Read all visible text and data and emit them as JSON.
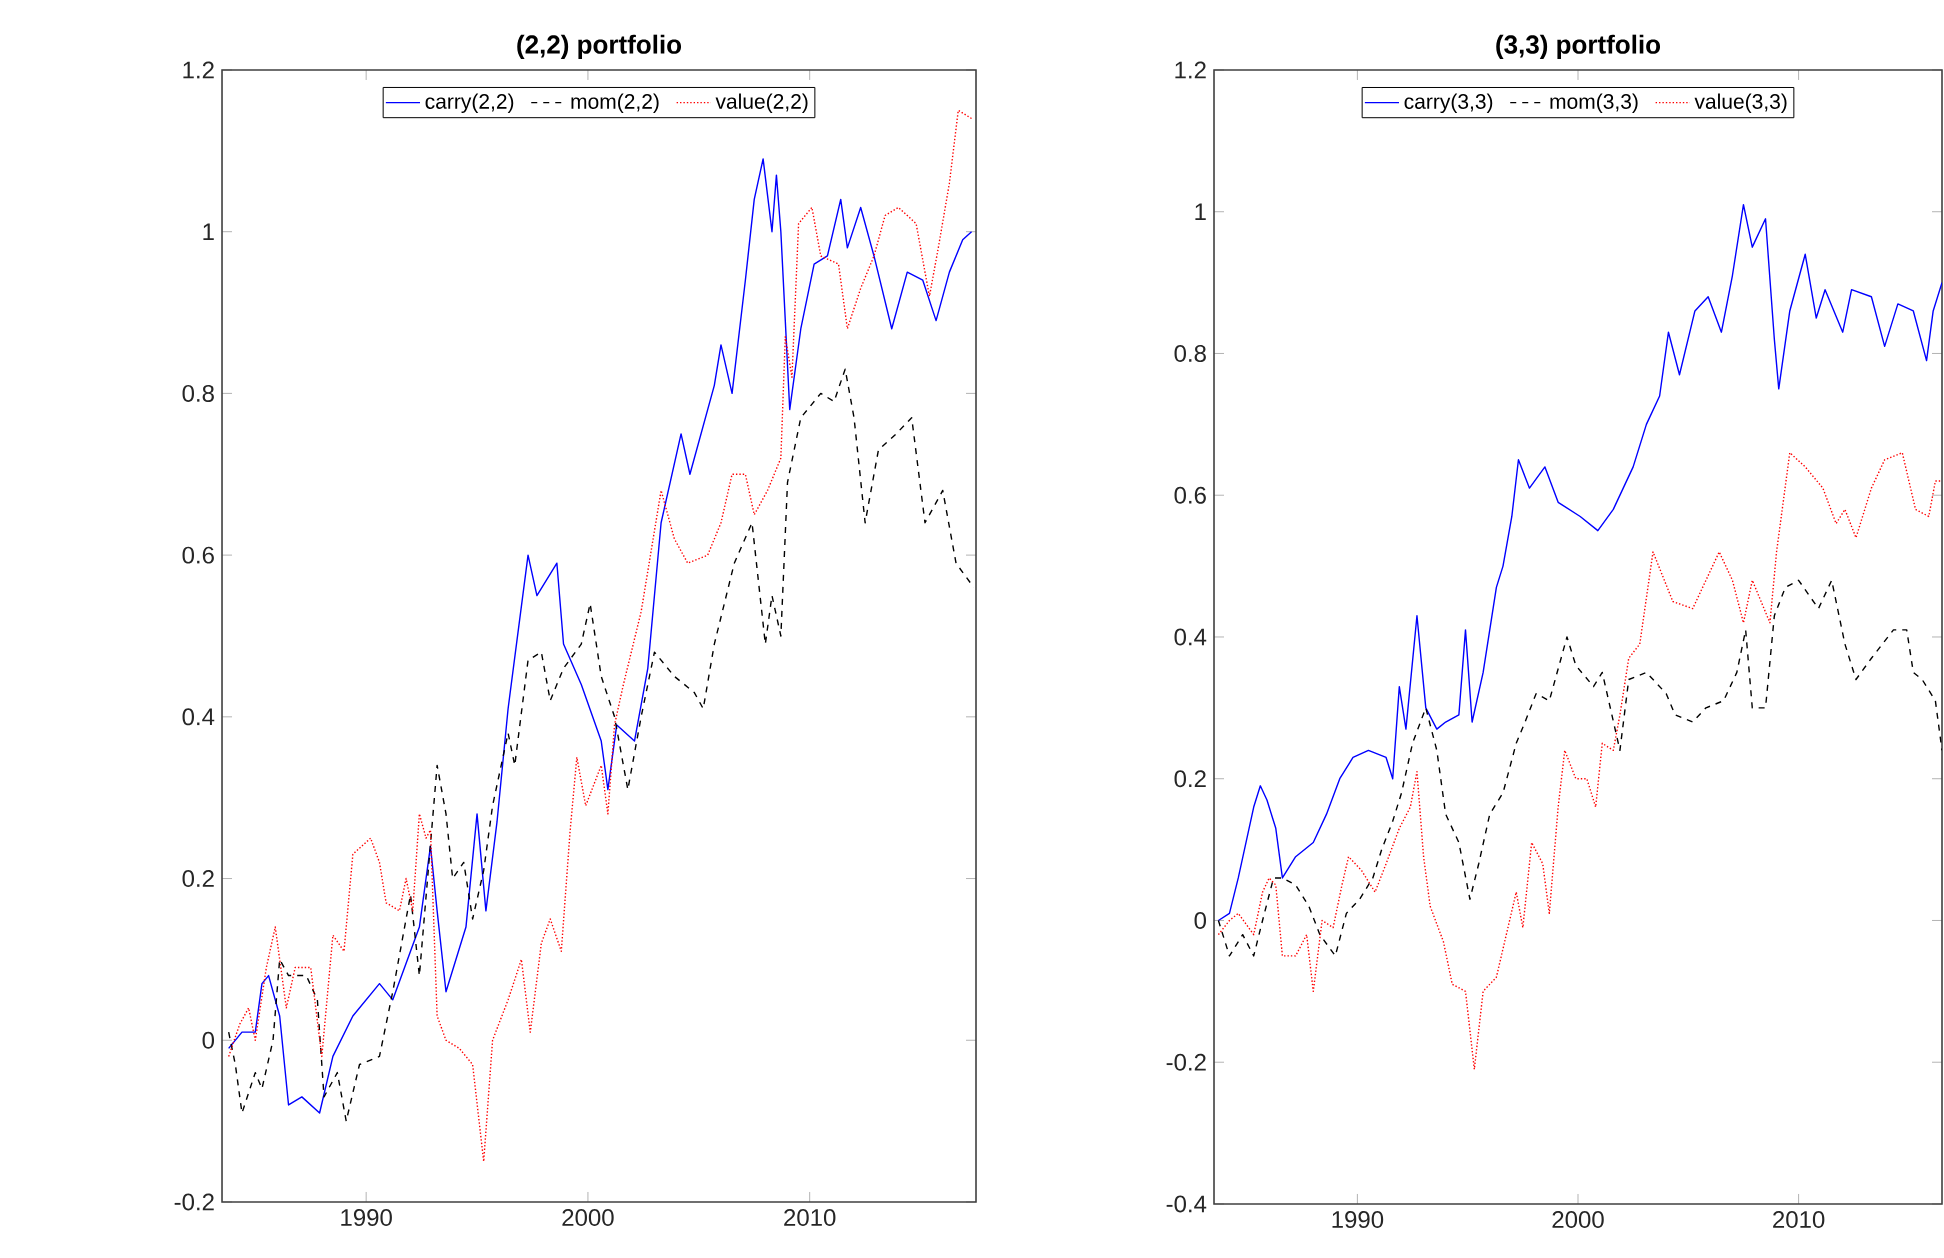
{
  "chart_data": [
    {
      "type": "line",
      "title": "(2,2) portfolio",
      "legend": "top",
      "xlim": [
        1983.5,
        2017.5
      ],
      "ylim": [
        -0.2,
        1.2
      ],
      "xticks": [
        1990,
        2000,
        2010
      ],
      "yticks": [
        -0.2,
        0,
        0.2,
        0.4,
        0.6,
        0.8,
        1,
        1.2
      ],
      "series": [
        {
          "name": "carry(2,2)",
          "color": "#0000ff",
          "line_style": "solid",
          "x": [
            1983.8,
            1984.4,
            1985.0,
            1985.3,
            1985.6,
            1986.1,
            1986.5,
            1987.1,
            1987.9,
            1988.5,
            1989.4,
            1990.6,
            1991.2,
            1992.0,
            1992.4,
            1992.9,
            1993.2,
            1993.6,
            1994.5,
            1995.0,
            1995.4,
            1995.9,
            1996.4,
            1997.3,
            1997.7,
            1998.6,
            1998.9,
            1999.7,
            2000.6,
            2000.9,
            2001.3,
            2002.1,
            2002.7,
            2003.3,
            2004.2,
            2004.6,
            2005.7,
            2006.0,
            2006.5,
            2007.1,
            2007.5,
            2007.9,
            2008.3,
            2008.5,
            2008.7,
            2009.1,
            2009.6,
            2010.2,
            2010.8,
            2011.4,
            2011.7,
            2012.3,
            2012.9,
            2013.7,
            2014.4,
            2015.1,
            2015.7,
            2016.3,
            2016.9,
            2017.3
          ],
          "values": [
            -0.01,
            0.01,
            0.01,
            0.07,
            0.08,
            0.03,
            -0.08,
            -0.07,
            -0.09,
            -0.02,
            0.03,
            0.07,
            0.05,
            0.11,
            0.14,
            0.24,
            0.16,
            0.06,
            0.14,
            0.28,
            0.16,
            0.27,
            0.41,
            0.6,
            0.55,
            0.59,
            0.49,
            0.44,
            0.37,
            0.31,
            0.39,
            0.37,
            0.46,
            0.64,
            0.75,
            0.7,
            0.81,
            0.86,
            0.8,
            0.94,
            1.04,
            1.09,
            1.0,
            1.07,
            1.0,
            0.78,
            0.88,
            0.96,
            0.97,
            1.04,
            0.98,
            1.03,
            0.97,
            0.88,
            0.95,
            0.94,
            0.89,
            0.95,
            0.99,
            1.0
          ]
        },
        {
          "name": "mom(2,2)",
          "color": "#000000",
          "line_style": "dashed",
          "x": [
            1983.8,
            1984.1,
            1984.4,
            1985.0,
            1985.3,
            1985.8,
            1986.1,
            1986.5,
            1987.3,
            1987.8,
            1988.1,
            1988.7,
            1989.1,
            1989.7,
            1990.6,
            1991.2,
            1992.0,
            1992.4,
            1993.2,
            1993.6,
            1993.9,
            1994.4,
            1994.8,
            1995.3,
            1995.7,
            1996.4,
            1996.7,
            1997.3,
            1997.9,
            1998.3,
            1998.9,
            1999.7,
            2000.1,
            2000.6,
            2001.2,
            2001.8,
            2002.4,
            2003.0,
            2003.9,
            2004.8,
            2005.2,
            2005.7,
            2006.6,
            2007.4,
            2008.0,
            2008.3,
            2008.7,
            2009.0,
            2009.6,
            2010.5,
            2011.1,
            2011.6,
            2012.0,
            2012.5,
            2013.1,
            2013.9,
            2014.6,
            2015.2,
            2016.0,
            2016.6,
            2017.4
          ],
          "values": [
            0.01,
            -0.03,
            -0.09,
            -0.04,
            -0.06,
            0.0,
            0.1,
            0.08,
            0.08,
            0.05,
            -0.07,
            -0.04,
            -0.1,
            -0.03,
            -0.02,
            0.06,
            0.18,
            0.08,
            0.34,
            0.28,
            0.2,
            0.22,
            0.15,
            0.21,
            0.29,
            0.38,
            0.34,
            0.47,
            0.48,
            0.42,
            0.46,
            0.49,
            0.54,
            0.45,
            0.4,
            0.31,
            0.4,
            0.48,
            0.45,
            0.43,
            0.41,
            0.49,
            0.59,
            0.64,
            0.49,
            0.55,
            0.5,
            0.69,
            0.77,
            0.8,
            0.79,
            0.83,
            0.77,
            0.64,
            0.73,
            0.75,
            0.77,
            0.64,
            0.68,
            0.59,
            0.56
          ]
        },
        {
          "name": "value(2,2)",
          "color": "#ff0000",
          "line_style": "dotted",
          "x": [
            1983.8,
            1984.3,
            1984.7,
            1985.0,
            1985.5,
            1985.9,
            1986.4,
            1986.8,
            1987.5,
            1988.0,
            1988.5,
            1989.0,
            1989.4,
            1990.2,
            1990.6,
            1990.9,
            1991.5,
            1991.8,
            1992.1,
            1992.4,
            1992.7,
            1992.9,
            1993.2,
            1993.6,
            1994.2,
            1994.8,
            1995.3,
            1995.7,
            1996.4,
            1997.0,
            1997.4,
            1997.9,
            1998.3,
            1998.8,
            1999.2,
            1999.5,
            1999.9,
            2000.6,
            2000.9,
            2001.2,
            2001.6,
            2002.4,
            2003.3,
            2003.9,
            2004.5,
            2005.4,
            2006.0,
            2006.5,
            2007.1,
            2007.5,
            2008.1,
            2008.7,
            2008.9,
            2009.2,
            2009.5,
            2010.1,
            2010.5,
            2011.3,
            2011.7,
            2012.3,
            2012.9,
            2013.4,
            2014.0,
            2014.8,
            2015.4,
            2015.8,
            2016.3,
            2016.7,
            2017.3
          ],
          "values": [
            -0.02,
            0.02,
            0.04,
            0.0,
            0.09,
            0.14,
            0.04,
            0.09,
            0.09,
            -0.02,
            0.13,
            0.11,
            0.23,
            0.25,
            0.22,
            0.17,
            0.16,
            0.2,
            0.16,
            0.28,
            0.25,
            0.26,
            0.03,
            0.0,
            -0.01,
            -0.03,
            -0.15,
            0.0,
            0.05,
            0.1,
            0.01,
            0.12,
            0.15,
            0.11,
            0.26,
            0.35,
            0.29,
            0.34,
            0.28,
            0.39,
            0.44,
            0.53,
            0.68,
            0.62,
            0.59,
            0.6,
            0.64,
            0.7,
            0.7,
            0.65,
            0.68,
            0.72,
            0.87,
            0.82,
            1.01,
            1.03,
            0.97,
            0.96,
            0.88,
            0.93,
            0.97,
            1.02,
            1.03,
            1.01,
            0.92,
            0.98,
            1.06,
            1.15,
            1.14
          ]
        }
      ]
    },
    {
      "type": "line",
      "title": "(3,3) portfolio",
      "legend": "top",
      "xlim": [
        1983.5,
        2016.5
      ],
      "ylim": [
        -0.4,
        1.2
      ],
      "xticks": [
        1990,
        2000,
        2010
      ],
      "yticks": [
        -0.4,
        -0.2,
        0,
        0.2,
        0.4,
        0.6,
        0.8,
        1,
        1.2
      ],
      "series": [
        {
          "name": "carry(3,3)",
          "color": "#0000ff",
          "line_style": "solid",
          "x": [
            1983.7,
            1984.2,
            1984.6,
            1985.3,
            1985.6,
            1985.9,
            1986.3,
            1986.6,
            1987.2,
            1988.0,
            1988.6,
            1989.2,
            1989.8,
            1990.5,
            1991.3,
            1991.6,
            1991.9,
            1992.2,
            1992.7,
            1993.1,
            1993.6,
            1994.0,
            1994.6,
            1994.9,
            1995.2,
            1995.7,
            1996.3,
            1996.6,
            1997.0,
            1997.3,
            1997.8,
            1998.5,
            1999.1,
            2000.1,
            2000.9,
            2001.6,
            2002.5,
            2003.1,
            2003.7,
            2004.1,
            2004.6,
            2005.3,
            2005.9,
            2006.5,
            2007.0,
            2007.5,
            2007.9,
            2008.5,
            2008.9,
            2009.1,
            2009.6,
            2010.3,
            2010.8,
            2011.2,
            2012.0,
            2012.4,
            2013.3,
            2013.9,
            2014.5,
            2015.2,
            2015.8,
            2016.1,
            2016.5
          ],
          "values": [
            0.0,
            0.01,
            0.06,
            0.16,
            0.19,
            0.17,
            0.13,
            0.06,
            0.09,
            0.11,
            0.15,
            0.2,
            0.23,
            0.24,
            0.23,
            0.2,
            0.33,
            0.27,
            0.43,
            0.3,
            0.27,
            0.28,
            0.29,
            0.41,
            0.28,
            0.35,
            0.47,
            0.5,
            0.57,
            0.65,
            0.61,
            0.64,
            0.59,
            0.57,
            0.55,
            0.58,
            0.64,
            0.7,
            0.74,
            0.83,
            0.77,
            0.86,
            0.88,
            0.83,
            0.91,
            1.01,
            0.95,
            0.99,
            0.82,
            0.75,
            0.86,
            0.94,
            0.85,
            0.89,
            0.83,
            0.89,
            0.88,
            0.81,
            0.87,
            0.86,
            0.79,
            0.86,
            0.9
          ]
        },
        {
          "name": "mom(3,3)",
          "color": "#000000",
          "line_style": "dashed",
          "x": [
            1983.7,
            1984.2,
            1984.8,
            1985.3,
            1985.7,
            1986.2,
            1986.6,
            1987.2,
            1987.8,
            1988.3,
            1989.0,
            1989.5,
            1990.1,
            1990.7,
            1991.1,
            1991.6,
            1992.0,
            1992.5,
            1993.1,
            1993.6,
            1994.0,
            1994.6,
            1995.1,
            1995.5,
            1996.0,
            1996.6,
            1997.2,
            1997.6,
            1998.1,
            1998.7,
            1999.5,
            1999.9,
            2000.7,
            2001.1,
            2001.9,
            2002.3,
            2003.1,
            2004.0,
            2004.4,
            2005.2,
            2005.8,
            2006.6,
            2007.2,
            2007.6,
            2007.9,
            2008.5,
            2008.9,
            2009.4,
            2010.0,
            2010.9,
            2011.5,
            2012.1,
            2012.6,
            2013.3,
            2014.3,
            2014.9,
            2015.2,
            2015.6,
            2016.2,
            2016.5
          ],
          "values": [
            0.0,
            -0.05,
            -0.02,
            -0.05,
            0.0,
            0.06,
            0.06,
            0.05,
            0.02,
            -0.02,
            -0.05,
            0.01,
            0.03,
            0.06,
            0.1,
            0.14,
            0.18,
            0.25,
            0.3,
            0.24,
            0.15,
            0.11,
            0.03,
            0.08,
            0.15,
            0.18,
            0.25,
            0.28,
            0.32,
            0.31,
            0.4,
            0.36,
            0.33,
            0.35,
            0.24,
            0.34,
            0.35,
            0.32,
            0.29,
            0.28,
            0.3,
            0.31,
            0.35,
            0.41,
            0.3,
            0.3,
            0.43,
            0.47,
            0.48,
            0.44,
            0.48,
            0.39,
            0.34,
            0.37,
            0.41,
            0.41,
            0.35,
            0.34,
            0.31,
            0.24
          ]
        },
        {
          "name": "value(3,3)",
          "color": "#ff0000",
          "line_style": "dotted",
          "x": [
            1983.7,
            1984.2,
            1984.6,
            1985.3,
            1985.7,
            1986.0,
            1986.3,
            1986.6,
            1987.2,
            1987.7,
            1988.0,
            1988.4,
            1988.9,
            1989.3,
            1989.6,
            1990.2,
            1990.8,
            1991.3,
            1991.9,
            1992.4,
            1992.7,
            1993.0,
            1993.3,
            1993.9,
            1994.3,
            1994.9,
            1995.3,
            1995.7,
            1996.3,
            1996.6,
            1997.2,
            1997.5,
            1997.9,
            1998.4,
            1998.7,
            1999.1,
            1999.4,
            1999.9,
            2000.4,
            2000.8,
            2001.1,
            2001.6,
            2001.9,
            2002.3,
            2002.8,
            2003.4,
            2004.3,
            2005.2,
            2005.8,
            2006.4,
            2007.0,
            2007.5,
            2007.9,
            2008.7,
            2009.0,
            2009.6,
            2010.3,
            2011.1,
            2011.7,
            2012.1,
            2012.6,
            2013.3,
            2013.9,
            2014.7,
            2015.3,
            2015.9,
            2016.2,
            2016.5
          ],
          "values": [
            -0.02,
            0.0,
            0.01,
            -0.02,
            0.04,
            0.06,
            0.05,
            -0.05,
            -0.05,
            -0.02,
            -0.1,
            0.0,
            -0.01,
            0.05,
            0.09,
            0.07,
            0.04,
            0.08,
            0.13,
            0.16,
            0.21,
            0.09,
            0.02,
            -0.03,
            -0.09,
            -0.1,
            -0.21,
            -0.1,
            -0.08,
            -0.04,
            0.04,
            -0.01,
            0.11,
            0.08,
            0.01,
            0.16,
            0.24,
            0.2,
            0.2,
            0.16,
            0.25,
            0.24,
            0.29,
            0.37,
            0.39,
            0.52,
            0.45,
            0.44,
            0.48,
            0.52,
            0.48,
            0.42,
            0.48,
            0.42,
            0.52,
            0.66,
            0.64,
            0.61,
            0.56,
            0.58,
            0.54,
            0.61,
            0.65,
            0.66,
            0.58,
            0.57,
            0.62,
            0.62
          ]
        }
      ]
    }
  ]
}
